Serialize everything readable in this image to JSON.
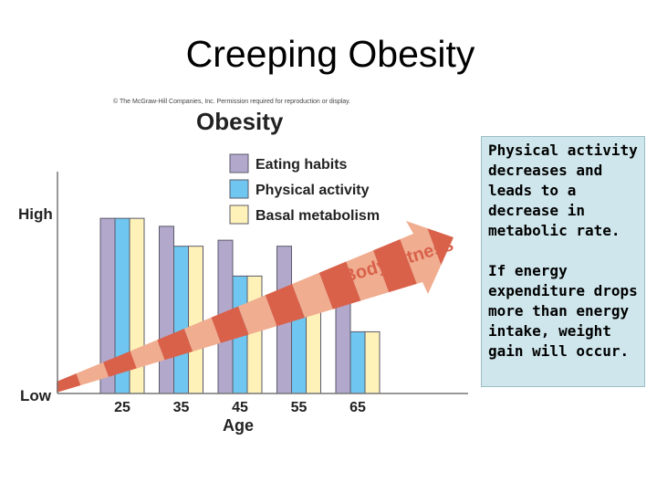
{
  "slide_title": "Creeping Obesity",
  "notes": [
    "Physical activity decreases and leads to a decrease in metabolic rate.",
    "If energy expenditure drops more than energy intake, weight gain will occur."
  ],
  "colors": {
    "eating": "#b2a8cc",
    "activity": "#6fc6f0",
    "basal": "#fef2b8",
    "arrow_dark": "#d9614a",
    "arrow_light": "#f0ad90",
    "notes_bg": "#cfe6ec"
  },
  "chart_data": {
    "type": "bar",
    "copyright": "© The McGraw-Hill Companies, Inc. Permission required for reproduction or display.",
    "title": "Obesity",
    "xlabel": "Age",
    "ylabel": "",
    "ytick_labels": [
      "High",
      "Low"
    ],
    "ylim": [
      0,
      100
    ],
    "categories": [
      "25",
      "35",
      "45",
      "55",
      "65"
    ],
    "series": [
      {
        "name": "Eating habits",
        "values": [
          88,
          84,
          77,
          74,
          63
        ]
      },
      {
        "name": "Physical activity",
        "values": [
          88,
          74,
          59,
          46,
          31
        ]
      },
      {
        "name": "Basal metabolism",
        "values": [
          88,
          74,
          59,
          46,
          31
        ]
      }
    ],
    "annotation": "Body fatness",
    "legend_position": "top-center"
  }
}
